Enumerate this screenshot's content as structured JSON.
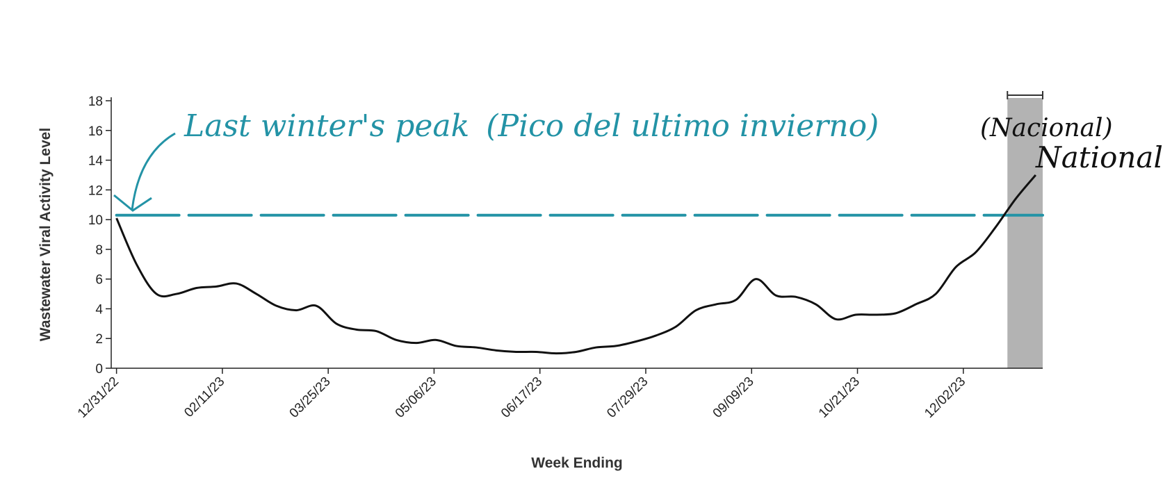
{
  "chart_data": {
    "type": "line",
    "xlabel": "Week Ending",
    "ylabel": "Wastewater Viral Activity Level",
    "x_tick_labels": [
      "12/31/22",
      "02/11/23",
      "03/25/23",
      "05/06/23",
      "06/17/23",
      "07/29/23",
      "09/09/23",
      "10/21/23",
      "12/02/23"
    ],
    "y_ticks": [
      0,
      2,
      4,
      6,
      8,
      10,
      12,
      14,
      16,
      18
    ],
    "ylim": [
      0,
      18
    ],
    "x_weeks_range": [
      -0.3,
      52.5
    ],
    "series": [
      {
        "values": [
          10.1,
          7.0,
          5.0,
          5.0,
          5.4,
          5.5,
          5.7,
          5.0,
          4.2,
          3.9,
          4.2,
          3.0,
          2.6,
          2.5,
          1.9,
          1.7,
          1.9,
          1.5,
          1.4,
          1.2,
          1.1,
          1.1,
          1.0,
          1.1,
          1.4,
          1.5,
          1.8,
          2.2,
          2.8,
          3.9,
          4.3,
          4.6,
          6.0,
          4.9,
          4.8,
          4.3,
          3.3,
          3.6,
          3.6,
          3.7,
          4.3,
          5.0,
          6.8,
          7.8,
          9.5,
          11.4,
          13.0
        ],
        "color": "#111111"
      }
    ],
    "reference_line": {
      "value": 10.3,
      "style": "dashed",
      "color": "#2393a6"
    },
    "highlight_band": {
      "from_week": 50.5,
      "to_week": 52.5,
      "color": "#b3b3b3"
    },
    "annotations": {
      "peak_label": "Last winter's peak",
      "peak_label_es": "(Pico del ultimo invierno)",
      "national_label": "National",
      "national_label_es": "(Nacional)"
    },
    "grid": false
  }
}
